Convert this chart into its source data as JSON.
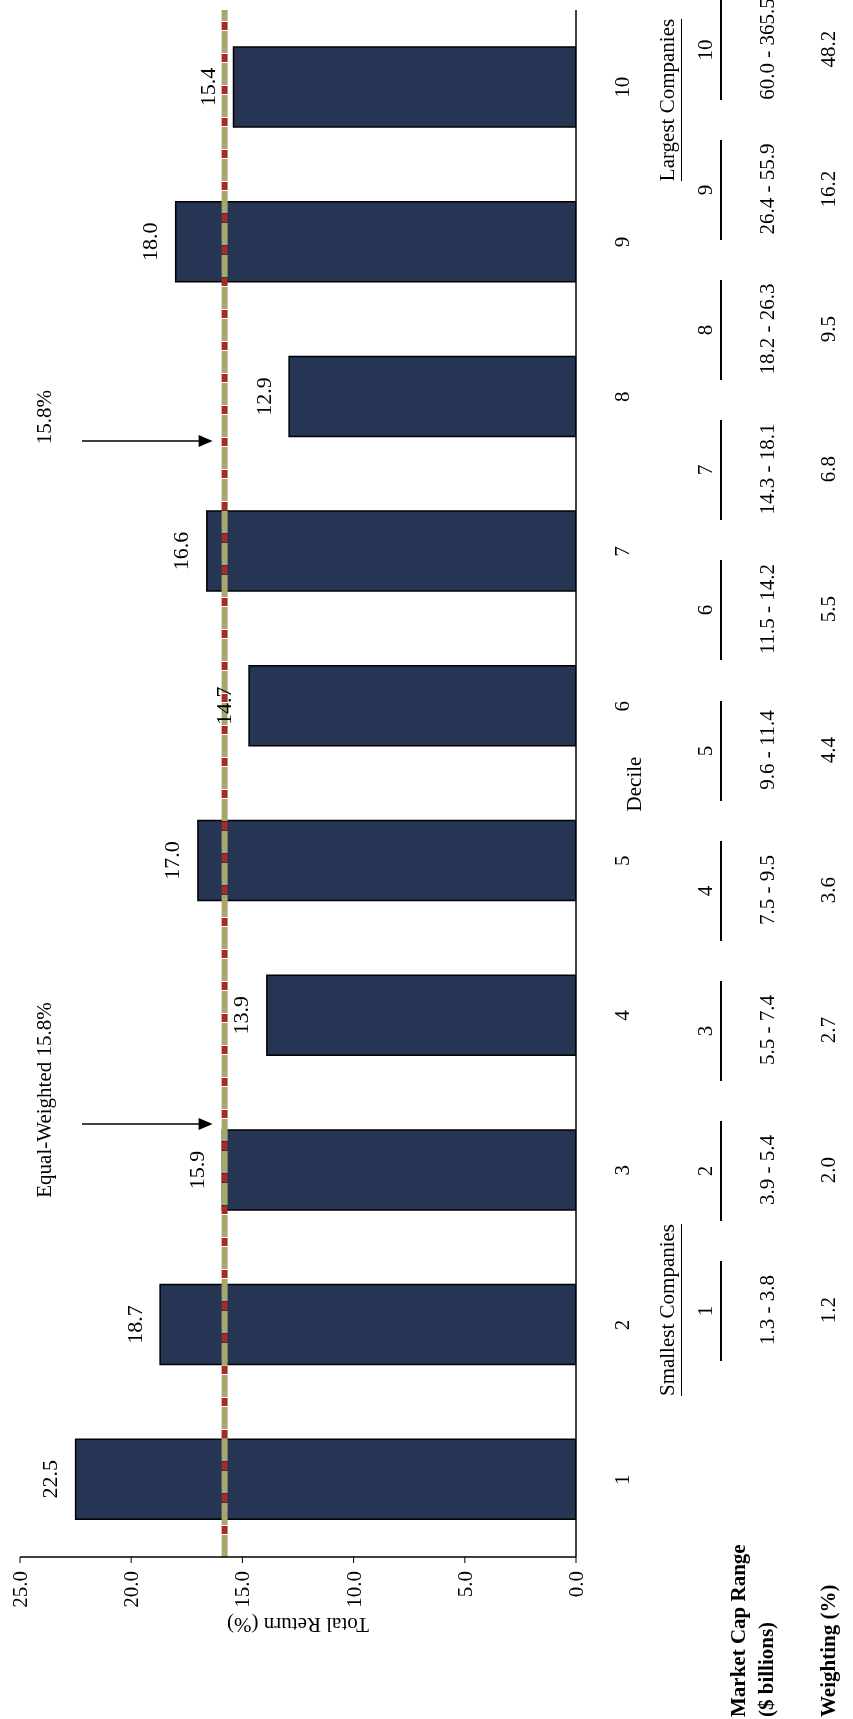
{
  "chart_data": {
    "type": "bar",
    "orientation": "horizontal",
    "xlabel": "Total Return (%)",
    "ylabel": "Decile",
    "categories": [
      "10",
      "9",
      "8",
      "7",
      "6",
      "5",
      "4",
      "3",
      "2",
      "1"
    ],
    "values": [
      15.4,
      18.0,
      12.9,
      16.6,
      14.7,
      17.0,
      13.9,
      15.9,
      18.7,
      22.5
    ],
    "value_labels": [
      "15.4",
      "18.0",
      "12.9",
      "16.6",
      "14.7",
      "17.0",
      "13.9",
      "15.9",
      "18.7",
      "22.5"
    ],
    "color": "#253553",
    "xlim": [
      25,
      0
    ],
    "xticks": [
      {
        "value": 25,
        "label": "25.0"
      },
      {
        "value": 20,
        "label": "20.0"
      },
      {
        "value": 15,
        "label": "15.0"
      },
      {
        "value": 10,
        "label": "10.0"
      },
      {
        "value": 5,
        "label": "5.0"
      },
      {
        "value": 0,
        "label": "0.0"
      }
    ],
    "ref_lines": [
      {
        "axis": "x",
        "value": 15.8,
        "color": "#a52a2a",
        "line_style": "dashed"
      },
      {
        "axis": "x",
        "value": 15.8,
        "color": "#a8a66c",
        "line_style": "dashed"
      }
    ],
    "annotations": [
      "Market Cap Range ($ billions)",
      "Weighting (%)",
      "Largest Companies",
      "Smallest Companies",
      "60.0 - 365.5",
      "26.4 - 55.9",
      "18.2 - 26.3",
      "14.3 - 18.1",
      "11.5 - 14.2",
      "9.6 - 11.4",
      "7.5 - 9.5",
      "5.5 - 7.4",
      "3.9 - 5.4",
      "1.3 - 3.8",
      "48.2",
      "16.2",
      "9.5",
      "6.8",
      "5.5",
      "4.4",
      "3.6",
      "2.7",
      "2.0",
      "1.2",
      "Equal-Weighted 15.8%",
      "15.8%"
    ]
  }
}
